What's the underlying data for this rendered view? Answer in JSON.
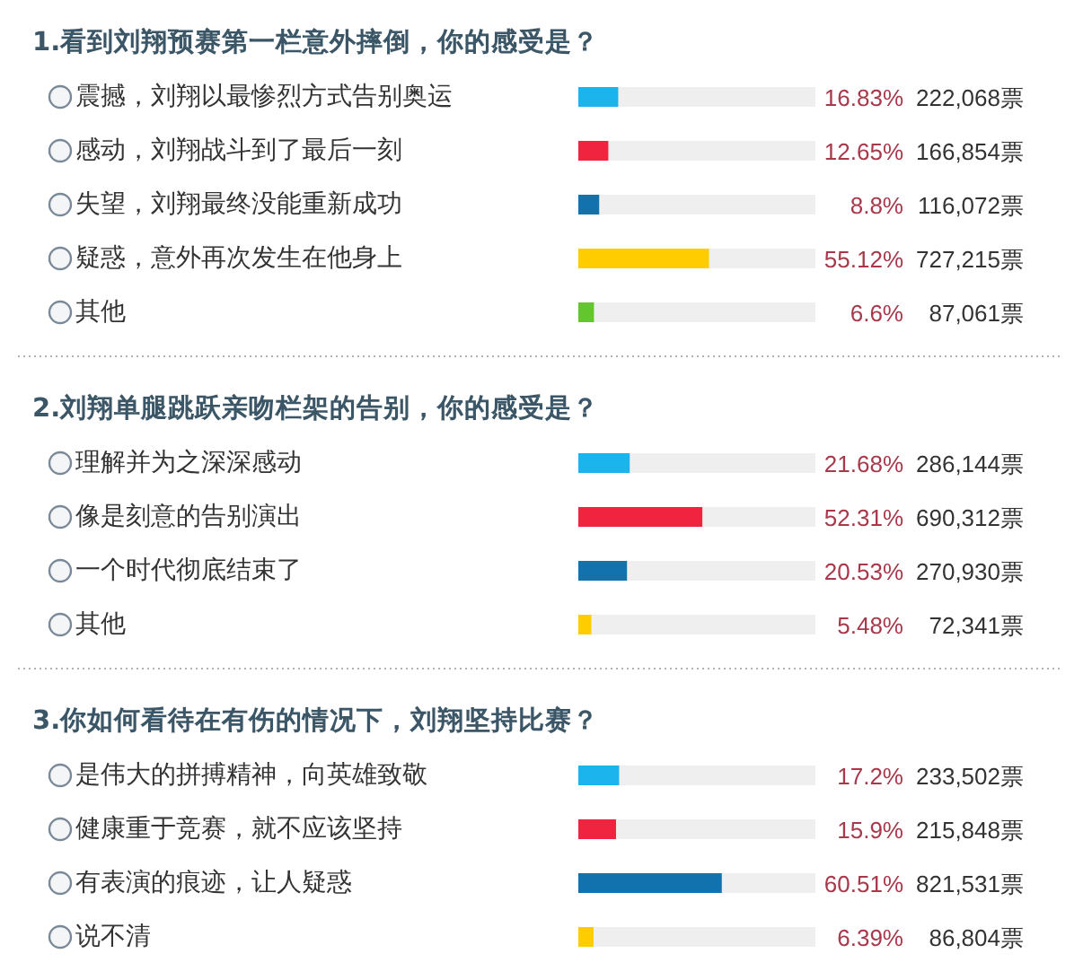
{
  "chart_data": [
    {
      "type": "bar",
      "orientation": "horizontal",
      "title": "1.看到刘翔预赛第一栏意外摔倒，你的感受是？",
      "categories": [
        "震撼，刘翔以最惨烈方式告别奥运",
        "感动，刘翔战斗到了最后一刻",
        "失望，刘翔最终没能重新成功",
        "疑惑，意外再次发生在他身上",
        "其他"
      ],
      "values": [
        16.83,
        12.65,
        8.8,
        55.12,
        6.6
      ],
      "colors": [
        "#1cb4ec",
        "#f0243f",
        "#1272ad",
        "#ffcc00",
        "#62c62c"
      ],
      "xlim": [
        0,
        100
      ],
      "tick_labels": "y",
      "value_labels": [
        "16.83%",
        "12.65%",
        "8.8%",
        "55.12%",
        "6.6%"
      ],
      "annotations": [
        "222,068票",
        "166,854票",
        "116,072票",
        "727,215票",
        "87,061票"
      ]
    },
    {
      "type": "bar",
      "orientation": "horizontal",
      "title": "2.刘翔单腿跳跃亲吻栏架的告别，你的感受是？",
      "categories": [
        "理解并为之深深感动",
        "像是刻意的告别演出",
        "一个时代彻底结束了",
        "其他"
      ],
      "values": [
        21.68,
        52.31,
        20.53,
        5.48
      ],
      "colors": [
        "#1cb4ec",
        "#f0243f",
        "#1272ad",
        "#ffcc00"
      ],
      "xlim": [
        0,
        100
      ],
      "tick_labels": "y",
      "value_labels": [
        "21.68%",
        "52.31%",
        "20.53%",
        "5.48%"
      ],
      "annotations": [
        "286,144票",
        "690,312票",
        "270,930票",
        "72,341票"
      ]
    },
    {
      "type": "bar",
      "orientation": "horizontal",
      "title": "3.你如何看待在有伤的情况下，刘翔坚持比赛？",
      "categories": [
        "是伟大的拼搏精神，向英雄致敬",
        "健康重于竞赛，就不应该坚持",
        "有表演的痕迹，让人疑惑",
        "说不清"
      ],
      "values": [
        17.2,
        15.9,
        60.51,
        6.39
      ],
      "colors": [
        "#1cb4ec",
        "#f0243f",
        "#1272ad",
        "#ffcc00"
      ],
      "xlim": [
        0,
        100
      ],
      "tick_labels": "y",
      "value_labels": [
        "17.2%",
        "15.9%",
        "60.51%",
        "6.39%"
      ],
      "annotations": [
        "233,502票",
        "215,848票",
        "821,531票",
        "86,804票"
      ]
    }
  ]
}
